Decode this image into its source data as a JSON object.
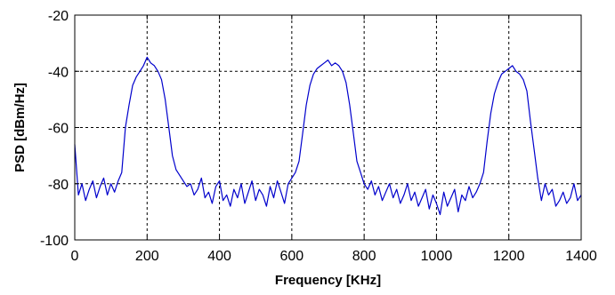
{
  "chart_data": {
    "type": "line",
    "title": "",
    "xlabel": "Frequency [KHz]",
    "ylabel": "PSD [dBm/Hz]",
    "xlim": [
      0,
      1400
    ],
    "ylim": [
      -100,
      -20
    ],
    "x_ticks": [
      0,
      200,
      400,
      600,
      800,
      1000,
      1200,
      1400
    ],
    "y_ticks": [
      -100,
      -80,
      -60,
      -40,
      -20
    ],
    "x_tick_labels": [
      "0",
      "200",
      "400",
      "600",
      "800",
      "1000",
      "1200",
      "1400"
    ],
    "y_tick_labels": [
      "-100",
      "-80",
      "-60",
      "-40",
      "-20"
    ],
    "grid": true,
    "line_color": "#0000cc",
    "series": [
      {
        "x": [
          0,
          10,
          20,
          30,
          40,
          50,
          60,
          70,
          80,
          90,
          100,
          110,
          120,
          130,
          140,
          150,
          160,
          170,
          180,
          190,
          200,
          210,
          220,
          230,
          240,
          250,
          260,
          270,
          280,
          290,
          300,
          310,
          320,
          330,
          340,
          350,
          360,
          370,
          380,
          390,
          400,
          410,
          420,
          430,
          440,
          450,
          460,
          470,
          480,
          490,
          500,
          510,
          520,
          530,
          540,
          550,
          560,
          570,
          580,
          590,
          600,
          610,
          620,
          630,
          640,
          650,
          660,
          670,
          680,
          690,
          700,
          710,
          720,
          730,
          740,
          750,
          760,
          770,
          780,
          790,
          800,
          810,
          820,
          830,
          840,
          850,
          860,
          870,
          880,
          890,
          900,
          910,
          920,
          930,
          940,
          950,
          960,
          970,
          980,
          990,
          1000,
          1010,
          1020,
          1030,
          1040,
          1050,
          1060,
          1070,
          1080,
          1090,
          1100,
          1110,
          1120,
          1130,
          1140,
          1150,
          1160,
          1170,
          1180,
          1190,
          1200,
          1210,
          1220,
          1230,
          1240,
          1250,
          1260,
          1270,
          1280,
          1290,
          1300,
          1310,
          1320,
          1330,
          1340,
          1350,
          1360,
          1370,
          1380,
          1390,
          1400
        ],
        "values": [
          -66,
          -84,
          -80,
          -86,
          -82,
          -79,
          -85,
          -81,
          -78,
          -84,
          -80,
          -83,
          -79,
          -76,
          -60,
          -52,
          -45,
          -42,
          -40,
          -38,
          -35,
          -37,
          -38,
          -40,
          -43,
          -50,
          -60,
          -70,
          -75,
          -77,
          -79,
          -81,
          -80,
          -84,
          -82,
          -78,
          -85,
          -83,
          -87,
          -81,
          -79,
          -86,
          -84,
          -88,
          -82,
          -85,
          -80,
          -87,
          -83,
          -79,
          -86,
          -82,
          -84,
          -88,
          -81,
          -85,
          -79,
          -83,
          -87,
          -80,
          -78,
          -76,
          -72,
          -62,
          -52,
          -45,
          -41,
          -39,
          -38,
          -37,
          -36,
          -38,
          -37,
          -38,
          -40,
          -44,
          -52,
          -62,
          -72,
          -76,
          -80,
          -82,
          -79,
          -84,
          -81,
          -86,
          -83,
          -80,
          -85,
          -82,
          -87,
          -84,
          -80,
          -86,
          -83,
          -88,
          -85,
          -82,
          -89,
          -84,
          -87,
          -91,
          -83,
          -88,
          -85,
          -82,
          -90,
          -84,
          -86,
          -81,
          -85,
          -83,
          -80,
          -76,
          -65,
          -55,
          -48,
          -44,
          -41,
          -40,
          -39,
          -38,
          -40,
          -41,
          -43,
          -47,
          -58,
          -68,
          -78,
          -86,
          -80,
          -84,
          -82,
          -88,
          -86,
          -83,
          -87,
          -85,
          -80,
          -86,
          -84
        ]
      }
    ]
  }
}
